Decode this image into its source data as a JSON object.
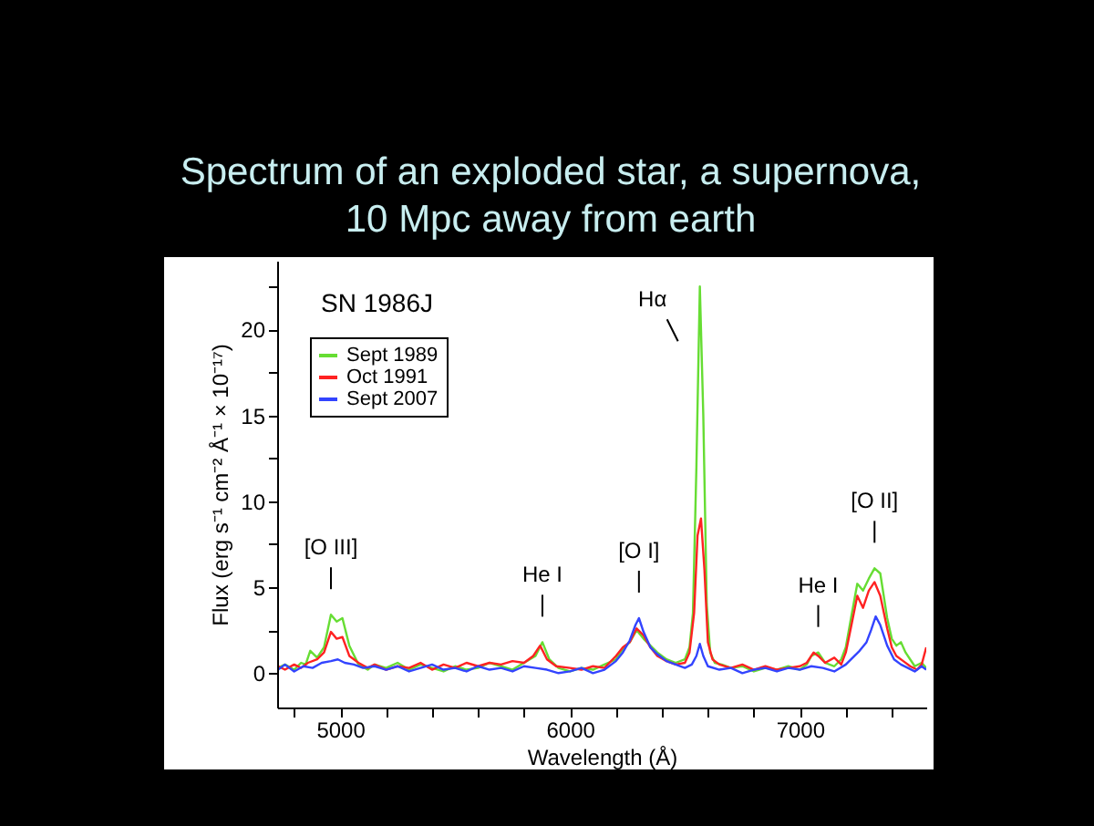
{
  "chart_data": {
    "type": "line",
    "title": [
      "Spectrum of an exploded star, a supernova,",
      "10 Mpc away from earth"
    ],
    "xlabel": "Wavelength (Å)",
    "ylabel": "Flux (erg s⁻¹ cm⁻² Å⁻¹ × 10⁻¹⁷)",
    "xlim": [
      4726,
      7550
    ],
    "ylim": [
      -2,
      24
    ],
    "xticks": [
      {
        "value": 4800,
        "label": null
      },
      5000,
      {
        "value": 5200,
        "label": null
      },
      {
        "value": 5400,
        "label": null
      },
      {
        "value": 5600,
        "label": null
      },
      {
        "value": 5800,
        "label": null
      },
      6000,
      {
        "value": 6200,
        "label": null
      },
      {
        "value": 6400,
        "label": null
      },
      {
        "value": 6600,
        "label": null
      },
      {
        "value": 6800,
        "label": null
      },
      7000,
      {
        "value": 7200,
        "label": null
      },
      {
        "value": 7400,
        "label": null
      }
    ],
    "yticks": [
      0,
      {
        "value": 2.5,
        "label": null
      },
      5,
      {
        "value": 7.5,
        "label": null
      },
      10,
      {
        "value": 12.5,
        "label": null
      },
      15,
      {
        "value": 17.5,
        "label": null
      },
      20,
      {
        "value": 22.5,
        "label": null
      }
    ],
    "grid": false,
    "legend": "top left",
    "line_style": "solid",
    "marker": "none",
    "annotations": [
      "SN 1986J",
      {
        "text": "[O III]",
        "x": 4960,
        "y": 3.4
      },
      {
        "text": "He I",
        "x": 5880,
        "y": 1.8
      },
      {
        "text": "[O I]",
        "x": 6300,
        "y": 3.2
      },
      {
        "text": "Hα",
        "x": 6565,
        "y": 22.5
      },
      {
        "text": "He I",
        "x": 7080,
        "y": 1.2
      },
      {
        "text": "[O II]",
        "x": 7325,
        "y": 6.1
      }
    ],
    "series": [
      {
        "name": "Sept 1989",
        "color": "#66dd33",
        "x": [
          4730,
          4760,
          4800,
          4830,
          4850,
          4870,
          4900,
          4930,
          4960,
          4985,
          5010,
          5040,
          5080,
          5120,
          5150,
          5200,
          5250,
          5300,
          5350,
          5400,
          5450,
          5500,
          5550,
          5600,
          5650,
          5700,
          5750,
          5800,
          5850,
          5880,
          5910,
          5950,
          6000,
          6050,
          6100,
          6150,
          6200,
          6230,
          6260,
          6290,
          6320,
          6350,
          6380,
          6420,
          6460,
          6500,
          6520,
          6535,
          6550,
          6565,
          6580,
          6595,
          6610,
          6630,
          6660,
          6700,
          6750,
          6800,
          6850,
          6900,
          6950,
          7000,
          7030,
          7050,
          7080,
          7110,
          7150,
          7180,
          7200,
          7220,
          7250,
          7275,
          7300,
          7325,
          7350,
          7380,
          7400,
          7420,
          7440,
          7460,
          7480,
          7500,
          7530,
          7550
        ],
        "values": [
          0.3,
          0.5,
          0.2,
          0.6,
          0.5,
          1.3,
          0.9,
          1.5,
          3.4,
          3.0,
          3.2,
          1.6,
          0.5,
          0.2,
          0.5,
          0.3,
          0.6,
          0.2,
          0.5,
          0.3,
          0.1,
          0.4,
          0.2,
          0.3,
          0.6,
          0.4,
          0.2,
          0.6,
          1.0,
          1.8,
          0.8,
          0.3,
          0.1,
          0.3,
          0.2,
          0.5,
          0.8,
          1.4,
          1.8,
          2.5,
          2.0,
          1.6,
          1.2,
          0.8,
          0.6,
          0.8,
          1.5,
          3.5,
          12,
          22.5,
          15,
          4,
          1.2,
          0.6,
          0.5,
          0.3,
          0.4,
          0.1,
          0.3,
          0.2,
          0.4,
          0.2,
          0.5,
          1.0,
          1.2,
          0.6,
          0.4,
          0.8,
          1.5,
          3.0,
          5.2,
          4.8,
          5.5,
          6.1,
          5.8,
          3.2,
          2.0,
          1.6,
          1.8,
          1.2,
          0.8,
          0.4,
          0.6,
          0.3
        ]
      },
      {
        "name": "Oct   1991",
        "color": "#ff2222",
        "x": [
          4730,
          4760,
          4800,
          4830,
          4860,
          4900,
          4930,
          4960,
          4985,
          5010,
          5040,
          5080,
          5120,
          5150,
          5200,
          5250,
          5300,
          5350,
          5400,
          5450,
          5500,
          5550,
          5600,
          5650,
          5700,
          5750,
          5800,
          5840,
          5870,
          5900,
          5940,
          6000,
          6050,
          6100,
          6150,
          6200,
          6230,
          6260,
          6290,
          6320,
          6350,
          6380,
          6420,
          6460,
          6500,
          6520,
          6540,
          6555,
          6570,
          6585,
          6600,
          6620,
          6650,
          6700,
          6750,
          6800,
          6850,
          6900,
          6950,
          7000,
          7030,
          7060,
          7080,
          7110,
          7150,
          7180,
          7200,
          7220,
          7250,
          7275,
          7300,
          7325,
          7350,
          7380,
          7400,
          7420,
          7450,
          7480,
          7510,
          7530,
          7550
        ],
        "values": [
          0.4,
          0.2,
          0.5,
          0.3,
          0.6,
          0.8,
          1.2,
          2.4,
          2.0,
          2.1,
          1.0,
          0.6,
          0.3,
          0.5,
          0.2,
          0.4,
          0.3,
          0.6,
          0.2,
          0.5,
          0.3,
          0.6,
          0.4,
          0.6,
          0.5,
          0.7,
          0.6,
          1.0,
          1.6,
          0.8,
          0.4,
          0.3,
          0.2,
          0.4,
          0.3,
          1.0,
          1.5,
          1.8,
          2.6,
          2.2,
          1.5,
          1.0,
          0.7,
          0.5,
          0.6,
          1.2,
          3.5,
          8.0,
          9.0,
          6.0,
          1.8,
          0.8,
          0.5,
          0.3,
          0.5,
          0.2,
          0.4,
          0.2,
          0.3,
          0.4,
          0.6,
          1.2,
          1.0,
          0.6,
          0.9,
          0.5,
          1.2,
          2.5,
          4.5,
          3.8,
          4.8,
          5.3,
          4.5,
          2.6,
          1.5,
          1.0,
          0.7,
          0.4,
          0.2,
          0.5,
          1.5
        ]
      },
      {
        "name": "Sept 2007",
        "color": "#3344ff",
        "x": [
          4730,
          4760,
          4800,
          4840,
          4880,
          4920,
          4960,
          4990,
          5020,
          5060,
          5100,
          5150,
          5200,
          5250,
          5300,
          5350,
          5400,
          5450,
          5500,
          5550,
          5600,
          5650,
          5700,
          5750,
          5800,
          5850,
          5900,
          5950,
          6000,
          6050,
          6100,
          6150,
          6200,
          6230,
          6260,
          6285,
          6300,
          6320,
          6350,
          6380,
          6420,
          6460,
          6500,
          6530,
          6550,
          6565,
          6580,
          6600,
          6650,
          6700,
          6750,
          6800,
          6850,
          6900,
          6950,
          7000,
          7050,
          7100,
          7150,
          7200,
          7230,
          7260,
          7290,
          7310,
          7330,
          7350,
          7380,
          7410,
          7440,
          7470,
          7500,
          7530,
          7550
        ],
        "values": [
          0.2,
          0.5,
          0.1,
          0.4,
          0.3,
          0.6,
          0.7,
          0.8,
          0.6,
          0.5,
          0.3,
          0.4,
          0.2,
          0.4,
          0.1,
          0.3,
          0.5,
          0.2,
          0.3,
          0.1,
          0.4,
          0.2,
          0.3,
          0.1,
          0.4,
          0.3,
          0.2,
          0.0,
          0.1,
          0.3,
          0.0,
          0.2,
          0.7,
          1.2,
          1.9,
          2.8,
          3.2,
          2.4,
          1.5,
          1.1,
          0.7,
          0.5,
          0.3,
          0.5,
          1.0,
          1.7,
          1.0,
          0.4,
          0.2,
          0.3,
          0.0,
          0.2,
          0.3,
          0.1,
          0.3,
          0.2,
          0.4,
          0.3,
          0.1,
          0.5,
          0.9,
          1.3,
          1.8,
          2.5,
          3.3,
          2.8,
          1.6,
          0.8,
          0.5,
          0.3,
          0.1,
          0.4,
          0.2
        ]
      }
    ]
  }
}
